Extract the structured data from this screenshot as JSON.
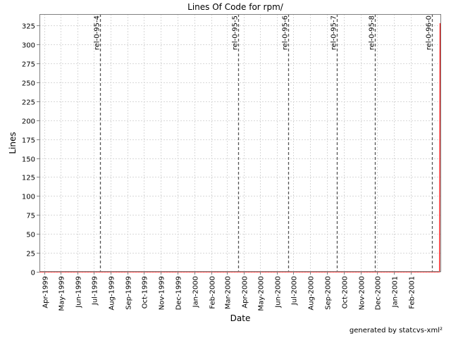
{
  "chart_data": {
    "type": "line",
    "title": "Lines Of Code for rpm/",
    "xlabel": "Date",
    "ylabel": "Lines",
    "ylim": [
      0,
      340
    ],
    "yticks": [
      0,
      25,
      50,
      75,
      100,
      125,
      150,
      175,
      200,
      225,
      250,
      275,
      300,
      325
    ],
    "xlim": [
      "1999-03-23",
      "2001-03-29"
    ],
    "xticks": [
      {
        "date": "1999-04-01",
        "label": "Apr-1999"
      },
      {
        "date": "1999-05-01",
        "label": "May-1999"
      },
      {
        "date": "1999-06-01",
        "label": "Jun-1999"
      },
      {
        "date": "1999-07-01",
        "label": "Jul-1999"
      },
      {
        "date": "1999-08-01",
        "label": "Aug-1999"
      },
      {
        "date": "1999-09-01",
        "label": "Sep-1999"
      },
      {
        "date": "1999-10-01",
        "label": "Oct-1999"
      },
      {
        "date": "1999-11-01",
        "label": "Nov-1999"
      },
      {
        "date": "1999-12-01",
        "label": "Dec-1999"
      },
      {
        "date": "2000-01-01",
        "label": "Jan-2000"
      },
      {
        "date": "2000-02-01",
        "label": "Feb-2000"
      },
      {
        "date": "2000-03-01",
        "label": "Mar-2000"
      },
      {
        "date": "2000-04-01",
        "label": "Apr-2000"
      },
      {
        "date": "2000-05-01",
        "label": "May-2000"
      },
      {
        "date": "2000-06-01",
        "label": "Jun-2000"
      },
      {
        "date": "2000-07-01",
        "label": "Jul-2000"
      },
      {
        "date": "2000-08-01",
        "label": "Aug-2000"
      },
      {
        "date": "2000-09-01",
        "label": "Sep-2000"
      },
      {
        "date": "2000-10-01",
        "label": "Oct-2000"
      },
      {
        "date": "2000-11-01",
        "label": "Nov-2000"
      },
      {
        "date": "2000-12-01",
        "label": "Dec-2000"
      },
      {
        "date": "2001-01-01",
        "label": "Jan-2001"
      },
      {
        "date": "2001-02-01",
        "label": "Feb-2001"
      }
    ],
    "grid": true,
    "series": [
      {
        "color": "#ff0000",
        "points": [
          {
            "x": "1999-03-23",
            "y": 0
          },
          {
            "x": "2001-03-26",
            "y": 0
          },
          {
            "x": "2001-03-27",
            "y": 328
          }
        ]
      }
    ],
    "markers": [
      {
        "date": "1999-07-12",
        "label": "rel-0-95-4"
      },
      {
        "date": "2000-03-22",
        "label": "rel-0-95-5"
      },
      {
        "date": "2000-06-21",
        "label": "rel-0-95-6"
      },
      {
        "date": "2000-09-19",
        "label": "rel-0-95-7"
      },
      {
        "date": "2000-11-27",
        "label": "rel-0-95-8"
      },
      {
        "date": "2001-03-12",
        "label": "rel-0-96-0"
      }
    ]
  },
  "footer": "generated by statcvs-xml²"
}
